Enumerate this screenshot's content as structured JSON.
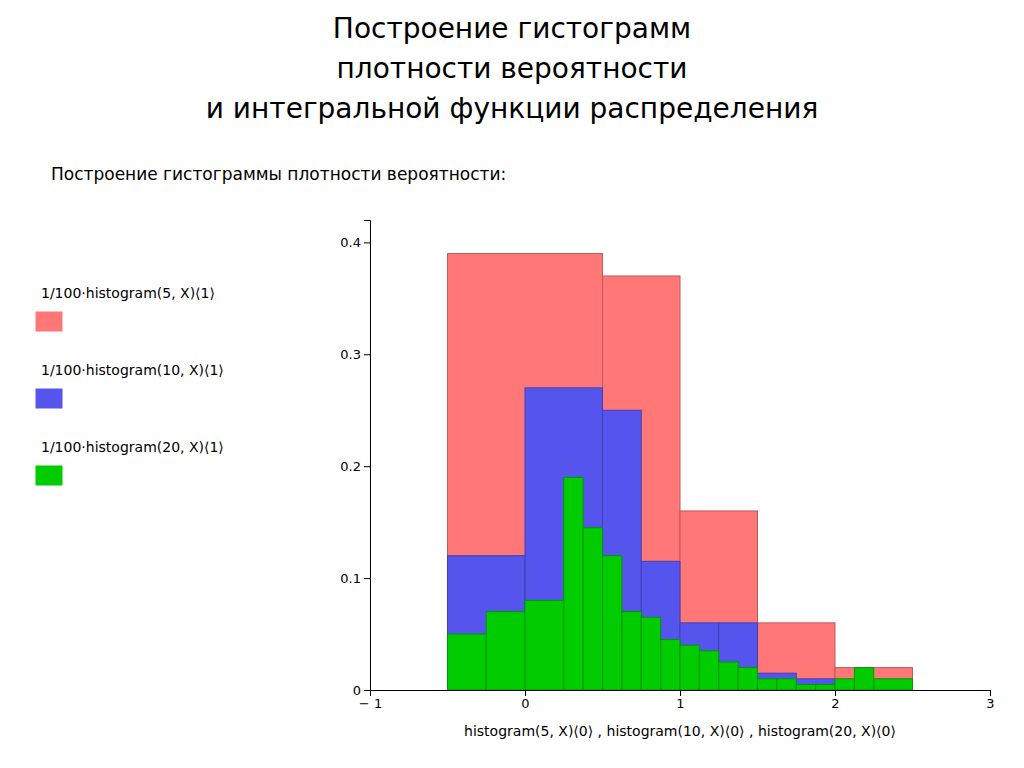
{
  "chart_data": {
    "type": "histogram",
    "title": "Построение гистограмм\nплотности вероятности\nи интегральной функции распределения",
    "subtitle": "Построение гистограммы плотности вероятности:",
    "x_label": "histogram(5, X)⟨0⟩ , histogram(10, X)⟨0⟩ , histogram(20, X)⟨0⟩",
    "xlim": [
      -1,
      3
    ],
    "ylim": [
      0,
      0.42
    ],
    "xticks": [
      {
        "value": -1,
        "label": "− 1"
      },
      0,
      1,
      2,
      3
    ],
    "yticks": [
      0,
      0.1,
      0.2,
      0.3,
      0.4
    ],
    "grid": false,
    "legend": "left",
    "series": [
      {
        "name": "1/100·histogram(5, X)⟨1⟩",
        "color": "#FF7777",
        "bins": [
          -0.5,
          0.5,
          1.0,
          1.5,
          2.0,
          2.5
        ],
        "values": [
          0.39,
          0.37,
          0.16,
          0.06,
          0.02
        ]
      },
      {
        "name": "1/100·histogram(10, X)⟨1⟩",
        "color": "#5555EE",
        "bins": [
          -0.5,
          0.0,
          0.5,
          0.75,
          1.0,
          1.25,
          1.5,
          1.75,
          2.0,
          2.25,
          2.5
        ],
        "values": [
          0.12,
          0.27,
          0.25,
          0.115,
          0.06,
          0.06,
          0.015,
          0.01,
          0.005,
          0.005
        ]
      },
      {
        "name": "1/100·histogram(20, X)⟨1⟩",
        "color": "#00CC00",
        "bins": [
          -0.5,
          -0.25,
          0.0,
          0.25,
          0.375,
          0.5,
          0.625,
          0.75,
          0.875,
          1.0,
          1.125,
          1.25,
          1.375,
          1.5,
          1.625,
          1.75,
          1.875,
          2.0,
          2.125,
          2.25,
          2.5
        ],
        "values": [
          0.05,
          0.07,
          0.08,
          0.19,
          0.145,
          0.12,
          0.07,
          0.065,
          0.045,
          0.04,
          0.035,
          0.025,
          0.02,
          0.01,
          0.01,
          0.005,
          0.005,
          0.01,
          0.02,
          0.01
        ]
      }
    ]
  }
}
